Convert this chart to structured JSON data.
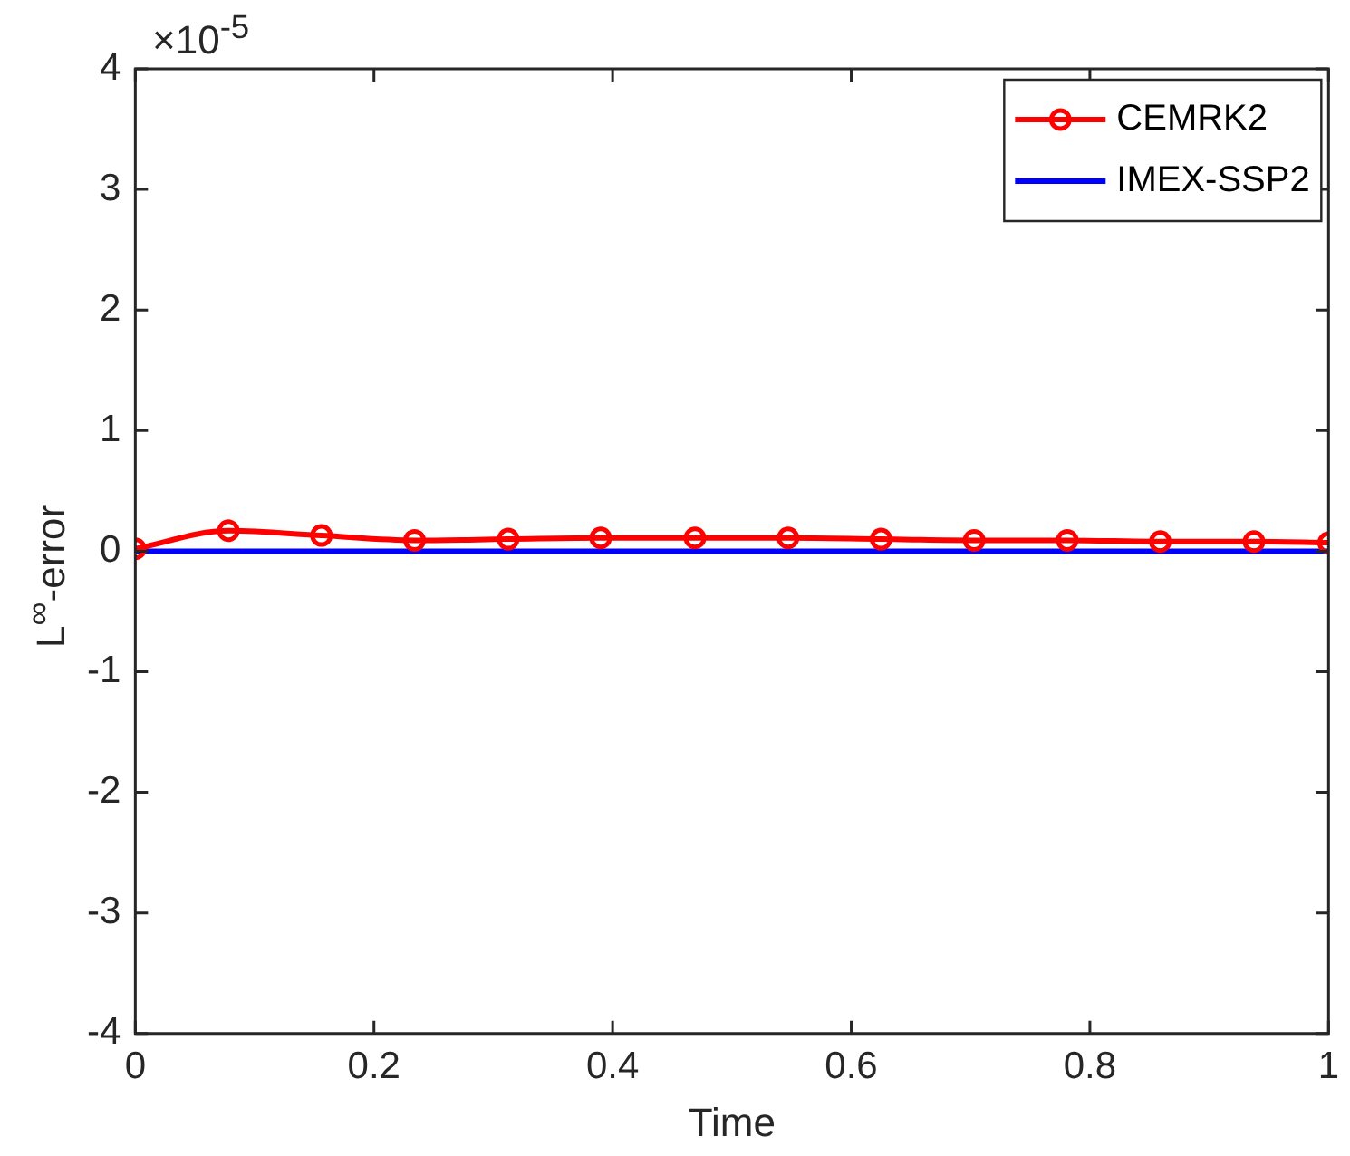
{
  "chart_data": {
    "type": "line",
    "xlabel": "Time",
    "ylabel": "L$^{∞}$-error",
    "annotations": [
      "×10$^{-5}$"
    ],
    "x": [
      0,
      0.078,
      0.156,
      0.234,
      0.3125,
      0.39,
      0.469,
      0.547,
      0.625,
      0.703,
      0.781,
      0.859,
      0.9375,
      1
    ],
    "series": [
      {
        "name": "CEMRK2",
        "color": "#ff0000",
        "marker": "circle",
        "values": [
          0.02,
          0.17,
          0.13,
          0.09,
          0.1,
          0.11,
          0.11,
          0.11,
          0.1,
          0.09,
          0.09,
          0.08,
          0.08,
          0.07
        ]
      },
      {
        "name": "IMEX-SSP2",
        "color": "#0000ff",
        "marker": "none",
        "values": [
          0,
          0,
          0,
          0,
          0,
          0,
          0,
          0,
          0,
          0,
          0,
          0,
          0,
          0
        ]
      }
    ],
    "xlim": [
      0,
      1
    ],
    "xticks": [
      0,
      0.2,
      0.4,
      0.6,
      0.8,
      1
    ],
    "ylim": [
      -4,
      4
    ],
    "yticks": [
      -4,
      -3,
      -2,
      -1,
      0,
      1,
      2,
      3,
      4
    ],
    "grid": false,
    "legend": "top right",
    "line_style": "solid"
  }
}
